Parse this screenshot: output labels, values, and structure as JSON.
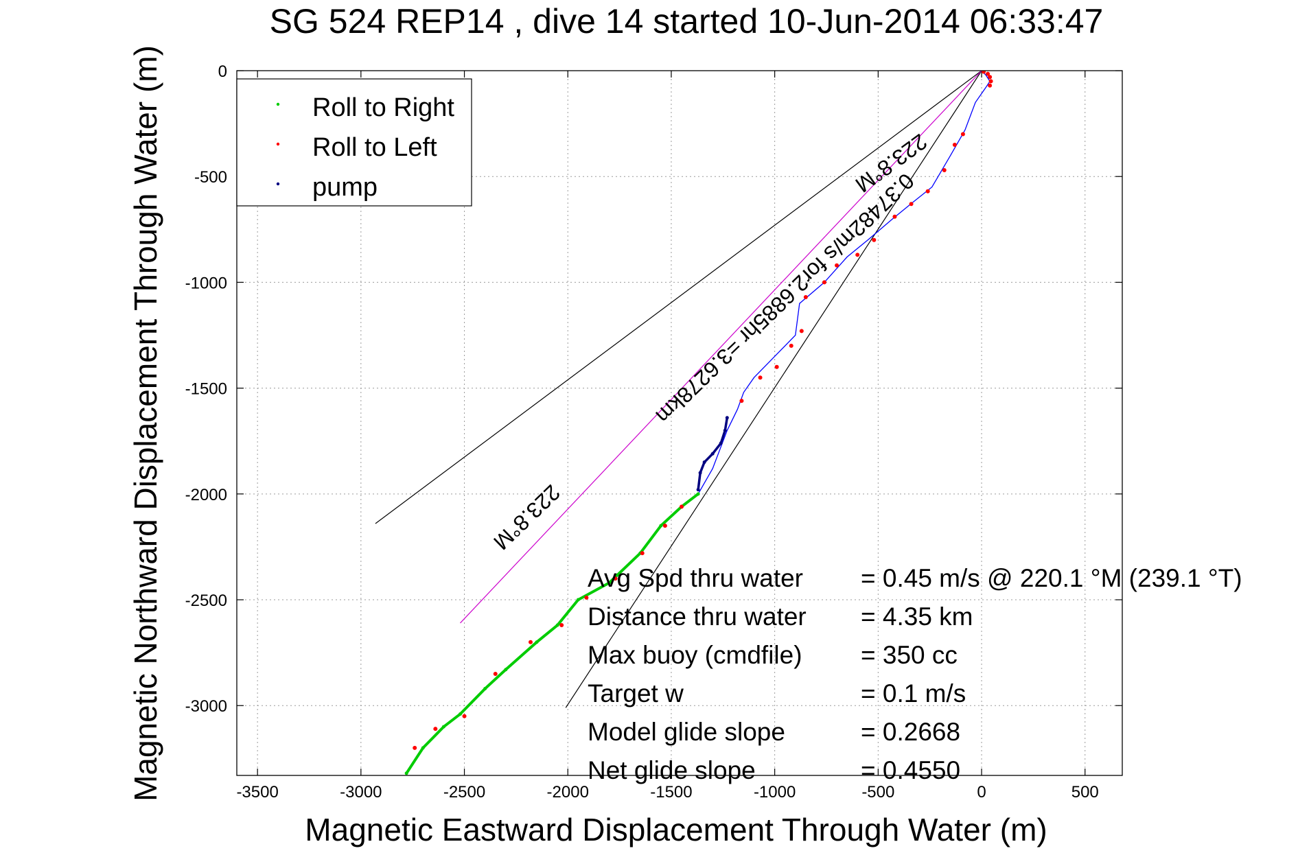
{
  "chart_data": {
    "type": "line",
    "title": "SG 524   REP14  , dive 14 started 10-Jun-2014 06:33:47",
    "xlabel": "Magnetic Eastward Displacement Through Water (m)",
    "ylabel": "Magnetic Northward Displacement Through Water (m)",
    "xlim": [
      -3600,
      680
    ],
    "ylim": [
      -3330,
      0
    ],
    "xticks": [
      -3500,
      -3000,
      -2500,
      -2000,
      -1500,
      -1000,
      -500,
      0,
      500
    ],
    "yticks": [
      0,
      -500,
      -1000,
      -1500,
      -2000,
      -2500,
      -3000
    ],
    "grid": true,
    "legend_position": "top-left",
    "legend": [
      {
        "label": "Roll to Right",
        "color": "#00cc00"
      },
      {
        "label": "Roll to Left",
        "color": "#ff0000"
      },
      {
        "label": "pump",
        "color": "#000080"
      }
    ],
    "series": [
      {
        "name": "Roll to Right",
        "color": "#00cc00",
        "x": [
          -1370,
          -1450,
          -1550,
          -1650,
          -1800,
          -1950,
          -2050,
          -2150,
          -2300,
          -2400,
          -2520,
          -2600,
          -2700,
          -2780
        ],
        "y": [
          -2000,
          -2060,
          -2150,
          -2280,
          -2420,
          -2500,
          -2620,
          -2700,
          -2830,
          -2920,
          -3040,
          -3100,
          -3200,
          -3320
        ]
      },
      {
        "name": "Roll to Left",
        "color": "#ff0000",
        "x": [
          -90,
          -130,
          -180,
          -260,
          -340,
          -420,
          -520,
          -600,
          -700,
          -760,
          -850,
          -870,
          -920,
          -990,
          -1070,
          -1160,
          -1450,
          -1530,
          -1640,
          -1770,
          -1910,
          -2030,
          -2180,
          -2350,
          -2500,
          -2640,
          -2740,
          10,
          30,
          40,
          45,
          40
        ],
        "y": [
          -300,
          -350,
          -470,
          -570,
          -630,
          -690,
          -800,
          -870,
          -920,
          -1000,
          -1070,
          -1230,
          -1300,
          -1400,
          -1450,
          -1560,
          -2060,
          -2150,
          -2280,
          -2400,
          -2490,
          -2620,
          -2700,
          -2850,
          -3050,
          -3110,
          -3200,
          -5,
          -15,
          -30,
          -50,
          -70
        ]
      },
      {
        "name": "pump",
        "color": "#000080",
        "x": [
          -1370,
          -1360,
          -1340,
          -1300,
          -1260,
          -1240,
          -1230
        ],
        "y": [
          -1980,
          -1900,
          -1850,
          -1810,
          -1760,
          -1700,
          -1640
        ]
      },
      {
        "name": "track",
        "color": "#0000ff",
        "x": [
          0,
          20,
          40,
          20,
          -30,
          -80,
          -150,
          -240,
          -330,
          -430,
          -550,
          -650,
          -760,
          -880,
          -900,
          -1000,
          -1100,
          -1150,
          -1180,
          -1230,
          -1300,
          -1370
        ],
        "y": [
          0,
          -20,
          -50,
          -80,
          -150,
          -280,
          -400,
          -550,
          -620,
          -700,
          -800,
          -880,
          -1000,
          -1100,
          -1250,
          -1350,
          -1450,
          -1520,
          -1600,
          -1700,
          -1880,
          -2000
        ]
      },
      {
        "name": "heading-line",
        "color": "#cc00cc",
        "x": [
          0,
          -2520
        ],
        "y": [
          0,
          -2610
        ]
      },
      {
        "name": "bound-left",
        "color": "#000000",
        "x": [
          0,
          -2930
        ],
        "y": [
          0,
          -2140
        ]
      },
      {
        "name": "bound-right",
        "color": "#000000",
        "x": [
          0,
          -2010
        ],
        "y": [
          0,
          -3010
        ]
      }
    ],
    "annotations": {
      "heading_top": "223.8°M",
      "heading_bottom": "223.8°M",
      "speed_line": "0.37482m/s for2.6885hr =3.6278km"
    },
    "summary": [
      {
        "label": "Avg Spd thru water",
        "value": "=  0.45 m/s @ 220.1 °M (239.1 °T)"
      },
      {
        "label": "Distance thru water",
        "value": "=  4.35 km"
      },
      {
        "label": "Max buoy (cmdfile)",
        "value": "= 350 cc"
      },
      {
        "label": "Target w",
        "value": "= 0.1 m/s"
      },
      {
        "label": "Model glide slope",
        "value": "= 0.2668"
      },
      {
        "label": "Net glide slope",
        "value": "= 0.4550"
      }
    ]
  }
}
